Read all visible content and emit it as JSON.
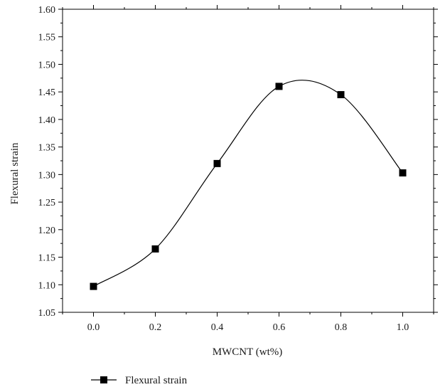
{
  "chart_data": {
    "type": "line",
    "title": "",
    "xlabel": "MWCNT (wt%)",
    "ylabel": "Flexural strain",
    "x": [
      0.0,
      0.2,
      0.4,
      0.6,
      0.8,
      1.0
    ],
    "series": [
      {
        "name": "Flexural strain",
        "values": [
          1.097,
          1.165,
          1.32,
          1.46,
          1.445,
          1.303
        ]
      }
    ],
    "xlim": [
      -0.1,
      1.1
    ],
    "ylim": [
      1.05,
      1.6
    ],
    "x_ticks": [
      "0.0",
      "0.2",
      "0.4",
      "0.6",
      "0.8",
      "1.0"
    ],
    "y_ticks": [
      "1.05",
      "1.10",
      "1.15",
      "1.20",
      "1.25",
      "1.30",
      "1.35",
      "1.40",
      "1.45",
      "1.50",
      "1.55",
      "1.60"
    ],
    "grid": false,
    "smooth_line": true,
    "marker": "square",
    "line_color": "#000000",
    "legend_position": "bottom-left"
  }
}
